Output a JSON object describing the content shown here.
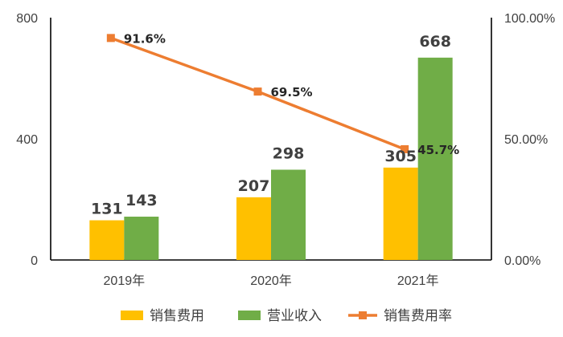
{
  "chart_data": {
    "type": "bar",
    "categories": [
      "2019年",
      "2020年",
      "2021年"
    ],
    "series": [
      {
        "name": "销售费用",
        "type": "bar",
        "axis": "left",
        "color": "#FFC000",
        "values": [
          131,
          207,
          305
        ]
      },
      {
        "name": "营业收入",
        "type": "bar",
        "axis": "left",
        "color": "#70AD47",
        "values": [
          143,
          298,
          668
        ]
      },
      {
        "name": "销售费用率",
        "type": "line",
        "axis": "right",
        "color": "#ED7D31",
        "values": [
          91.6,
          69.5,
          45.7
        ],
        "labels": [
          "91.6%",
          "69.5%",
          "45.7%"
        ]
      }
    ],
    "y_left": {
      "range": [
        0,
        800
      ],
      "ticks": [
        "0",
        "400",
        "800"
      ]
    },
    "y_right": {
      "range": [
        0,
        100
      ],
      "ticks": [
        "0.00%",
        "50.00%",
        "100.00%"
      ]
    },
    "grid": false,
    "legend_position": "bottom"
  }
}
